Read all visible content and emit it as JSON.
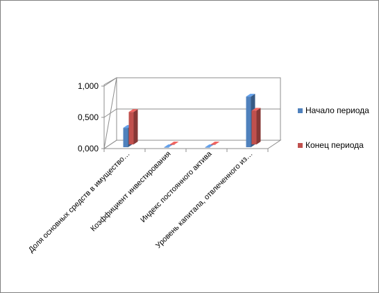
{
  "chart_data": {
    "type": "bar",
    "categories": [
      "Доля основных средств в имущество…",
      "Коэффициент инвестирования",
      "Индекс постоянного актива",
      "Уровень капитала, отвлеченного из…"
    ],
    "series": [
      {
        "name": "Начало периода",
        "color": "#4f81bd",
        "values": [
          0.31,
          0.0,
          0.0,
          0.81
        ]
      },
      {
        "name": "Конец периода",
        "color": "#c0504d",
        "values": [
          0.52,
          0.0,
          0.0,
          0.54
        ]
      }
    ],
    "yticks": [
      "0,000",
      "0,500",
      "1,000"
    ],
    "ylim": [
      0,
      1.0
    ],
    "grid": true,
    "legend_position": "right",
    "style": "3d-clustered-column"
  }
}
